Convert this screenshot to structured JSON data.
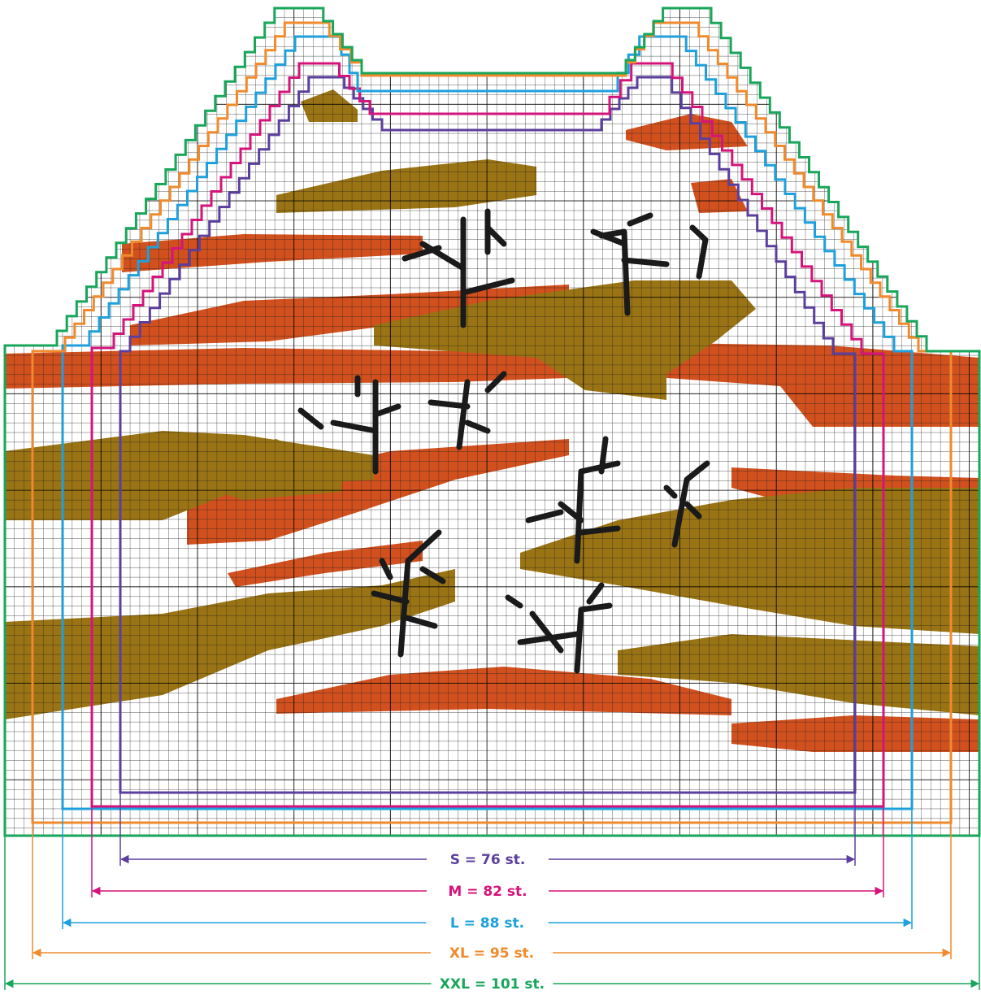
{
  "sizes": [
    {
      "label": "S = 76 st.",
      "color": "#5b3f9c"
    },
    {
      "label": "M = 82 st.",
      "color": "#d4147a"
    },
    {
      "label": "L = 88 st.",
      "color": "#1ea0dc"
    },
    {
      "label": "XL = 95 st.",
      "color": "#f08a2c"
    },
    {
      "label": "XXL = 101 st.",
      "color": "#18a65a"
    }
  ]
}
